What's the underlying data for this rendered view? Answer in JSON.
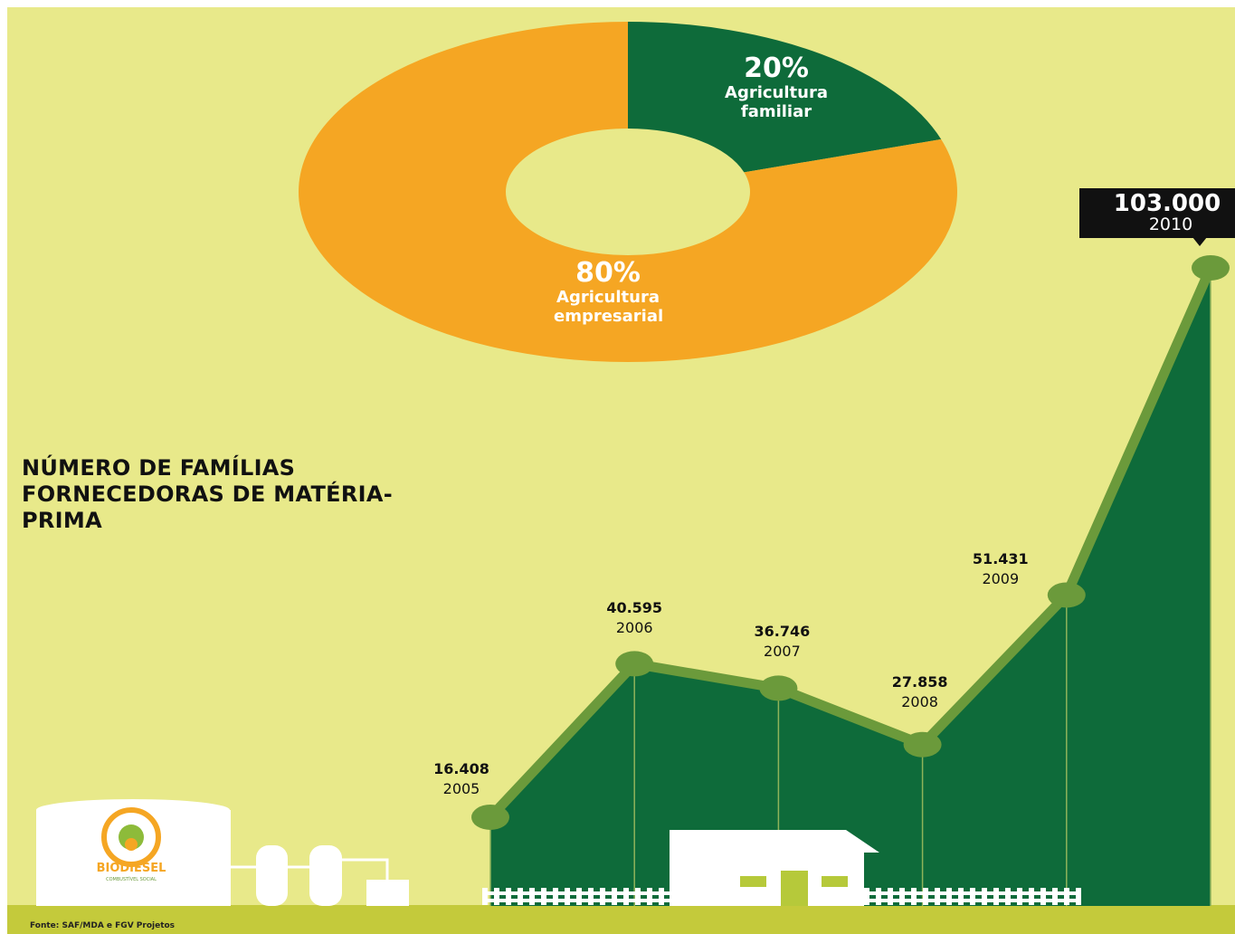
{
  "chart_data": [
    {
      "type": "pie",
      "categories": [
        "Agricultura familiar",
        "Agricultura empresarial"
      ],
      "values": [
        20,
        80
      ],
      "value_labels": [
        "20%",
        "80%"
      ],
      "colors": [
        "#0e6b3a",
        "#f5a623"
      ]
    },
    {
      "type": "area",
      "title": "NÚMERO DE FAMÍLIAS FORNECEDORAS DE MATÉRIA-PRIMA",
      "categories": [
        "2005",
        "2006",
        "2007",
        "2008",
        "2009",
        "2010"
      ],
      "values": [
        16408,
        40595,
        36746,
        27858,
        51431,
        103000
      ],
      "value_labels": [
        "16.408",
        "40.595",
        "36.746",
        "27.858",
        "51.431",
        "103.000"
      ],
      "color": "#0e6b3a",
      "line_color": "#6b9a3b"
    }
  ],
  "source": "Fonte: SAF/MDA e FGV Projetos",
  "logo": {
    "name": "BIODIESEL",
    "tagline": "COMBUSTÍVEL SOCIAL"
  }
}
